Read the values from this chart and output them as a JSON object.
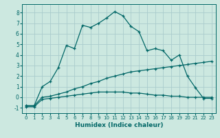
{
  "xlabel": "Humidex (Indice chaleur)",
  "bg_color": "#cce8e0",
  "grid_color": "#aacccc",
  "line_color": "#006666",
  "xlim": [
    -0.5,
    23.5
  ],
  "ylim": [
    -1.5,
    8.8
  ],
  "xticks": [
    0,
    1,
    2,
    3,
    4,
    5,
    6,
    7,
    8,
    9,
    10,
    11,
    12,
    13,
    14,
    15,
    16,
    17,
    18,
    19,
    20,
    21,
    22,
    23
  ],
  "yticks": [
    -1,
    0,
    1,
    2,
    3,
    4,
    5,
    6,
    7,
    8
  ],
  "series1_x": [
    0,
    1,
    2,
    3,
    4,
    5,
    6,
    7,
    8,
    9,
    10,
    11,
    12,
    13,
    14,
    15,
    16,
    17,
    18,
    19,
    20,
    21,
    22,
    23
  ],
  "series1_y": [
    -0.8,
    -0.8,
    1.0,
    1.5,
    2.8,
    4.9,
    4.6,
    6.8,
    6.6,
    7.0,
    7.5,
    8.1,
    7.7,
    6.7,
    6.2,
    4.4,
    4.6,
    4.4,
    3.5,
    4.0,
    2.0,
    0.9,
    -0.1,
    -0.1
  ],
  "series2_x": [
    0,
    1,
    2,
    3,
    4,
    5,
    6,
    7,
    8,
    9,
    10,
    11,
    12,
    13,
    14,
    15,
    16,
    17,
    18,
    19,
    20,
    21,
    22,
    23
  ],
  "series2_y": [
    -0.8,
    -0.8,
    0.0,
    0.1,
    0.3,
    0.5,
    0.8,
    1.0,
    1.3,
    1.5,
    1.8,
    2.0,
    2.2,
    2.4,
    2.5,
    2.6,
    2.7,
    2.8,
    2.9,
    3.0,
    3.1,
    3.2,
    3.3,
    3.4
  ],
  "series3_x": [
    0,
    1,
    2,
    3,
    4,
    5,
    6,
    7,
    8,
    9,
    10,
    11,
    12,
    13,
    14,
    15,
    16,
    17,
    18,
    19,
    20,
    21,
    22,
    23
  ],
  "series3_y": [
    -0.9,
    -0.9,
    -0.2,
    -0.1,
    0.0,
    0.1,
    0.2,
    0.3,
    0.4,
    0.5,
    0.5,
    0.5,
    0.5,
    0.4,
    0.4,
    0.3,
    0.2,
    0.2,
    0.1,
    0.1,
    0.0,
    0.0,
    0.0,
    0.0
  ]
}
